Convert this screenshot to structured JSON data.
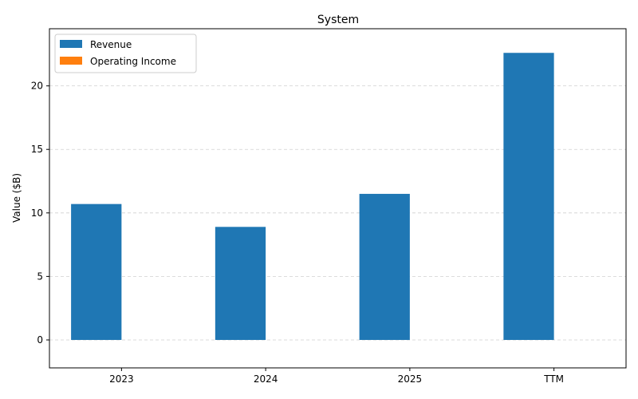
{
  "chart_data": {
    "type": "bar",
    "title": "System",
    "xlabel": "",
    "ylabel": "Value ($B)",
    "categories": [
      "2023",
      "2024",
      "2025",
      "TTM"
    ],
    "series": [
      {
        "name": "Revenue",
        "values": [
          10.7,
          8.9,
          11.5,
          22.6
        ],
        "color": "#1f77b4"
      },
      {
        "name": "Operating Income",
        "values": [
          0,
          0,
          0,
          0
        ],
        "color": "#ff7f0e"
      }
    ],
    "ylim": [
      -2.2,
      24.5
    ],
    "yticks": [
      0,
      5,
      10,
      15,
      20
    ],
    "grid": "y-dashed",
    "legend_position": "top-left"
  }
}
